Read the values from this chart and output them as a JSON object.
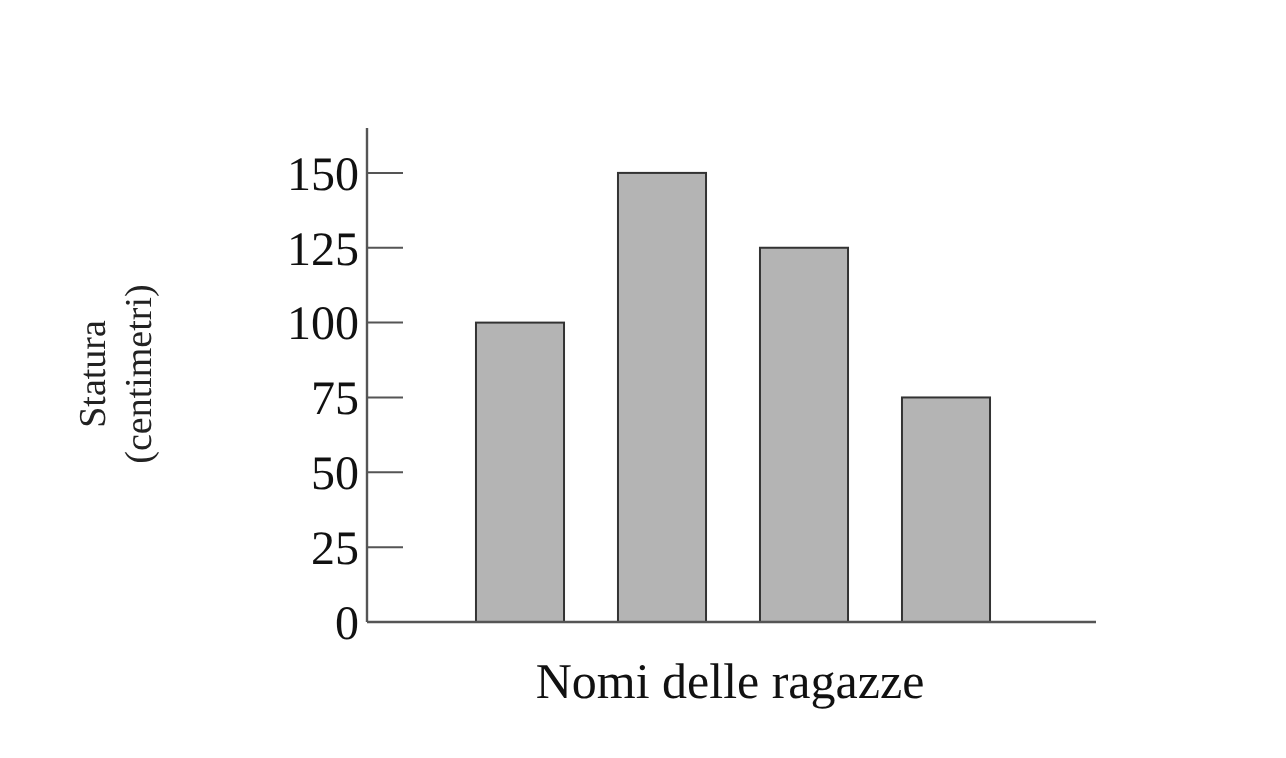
{
  "chart_data": {
    "type": "bar",
    "xlabel": "Nomi delle ragazze",
    "ylabel": "Statura\n(centimetri)",
    "categories": [
      null,
      null,
      null,
      null
    ],
    "values": [
      100,
      150,
      125,
      75
    ],
    "color": "#b4b4b4",
    "ylim": [
      0,
      165
    ],
    "yticks": [
      0,
      25,
      50,
      75,
      100,
      125,
      150
    ],
    "grid": false
  }
}
